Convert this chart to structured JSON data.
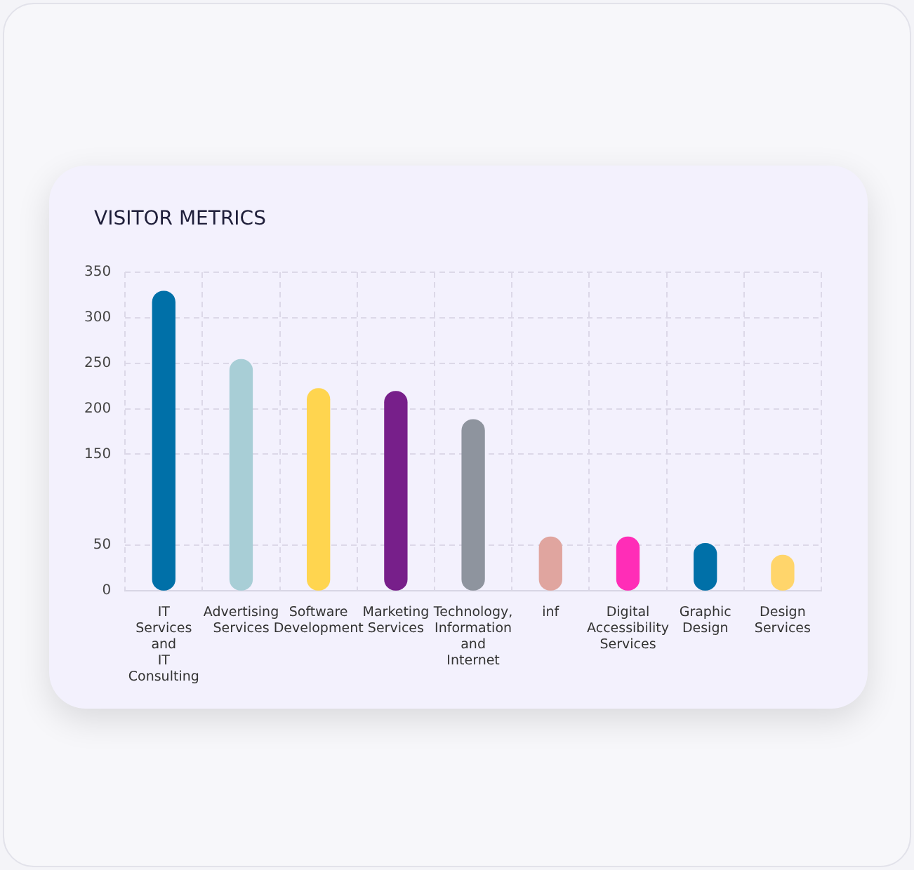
{
  "chart_data": {
    "type": "bar",
    "title": "VISITOR METRICS",
    "categories": [
      "IT Services and IT Consulting",
      "Advertising Services",
      "Software Development",
      "Marketing Services",
      "Technology, Information and Internet",
      "inf",
      "Digital Accessibility Services",
      "Graphic Design",
      "Design Services"
    ],
    "values": [
      329,
      254,
      222,
      219,
      188,
      59,
      59,
      52,
      39
    ],
    "colors": [
      "#0070a8",
      "#a8ced6",
      "#ffd54f",
      "#771f8a",
      "#8e949e",
      "#e0a59f",
      "#ff2db7",
      "#0070a8",
      "#ffd56b"
    ],
    "ylim": [
      0,
      350
    ],
    "yticks": [
      0,
      50,
      150,
      200,
      250,
      300,
      350
    ],
    "grid": true
  }
}
